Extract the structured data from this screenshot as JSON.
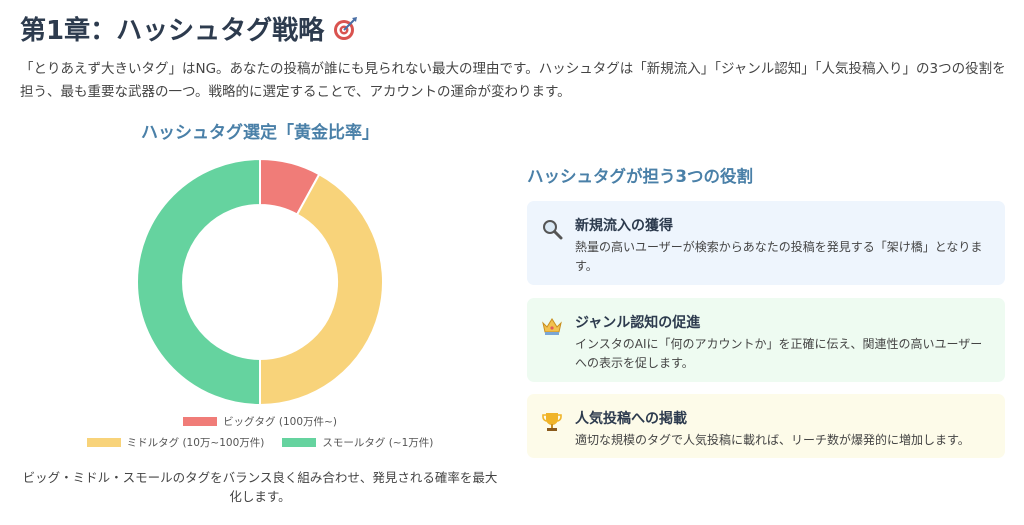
{
  "header": {
    "title": "第1章：ハッシュタグ戦略",
    "title_icon": "target-icon",
    "intro": "「とりあえず大きいタグ」はNG。あなたの投稿が誰にも見られない最大の理由です。ハッシュタグは「新規流入」「ジャンル認知」「人気投稿入り」の3つの役割を担う、最も重要な武器の一つ。戦略的に選定することで、アカウントの運命が変わります。"
  },
  "chart_data": {
    "type": "pie",
    "variant": "donut",
    "title": "ハッシュタグ選定「黄金比率」",
    "series": [
      {
        "name": "ビッグタグ (100万件~)",
        "value": 8,
        "color": "#f07c78"
      },
      {
        "name": "ミドルタグ (10万~100万件)",
        "value": 42,
        "color": "#f8d37a"
      },
      {
        "name": "スモールタグ (~1万件)",
        "value": 50,
        "color": "#65d39f"
      }
    ],
    "legend_position": "bottom",
    "caption": "ビッグ・ミドル・スモールのタグをバランス良く組み合わせ、発見される確率を最大化します。"
  },
  "roles": {
    "title": "ハッシュタグが担う3つの役割",
    "items": [
      {
        "icon": "magnifier-icon",
        "title": "新規流入の獲得",
        "desc": "熱量の高いユーザーが検索からあなたの投稿を発見する「架け橋」となります。"
      },
      {
        "icon": "crown-icon",
        "title": "ジャンル認知の促進",
        "desc": "インスタのAIに「何のアカウントか」を正確に伝え、関連性の高いユーザーへの表示を促します。"
      },
      {
        "icon": "trophy-icon",
        "title": "人気投稿への掲載",
        "desc": "適切な規模のタグで人気投稿に載れば、リーチ数が爆発的に増加します。"
      }
    ]
  }
}
